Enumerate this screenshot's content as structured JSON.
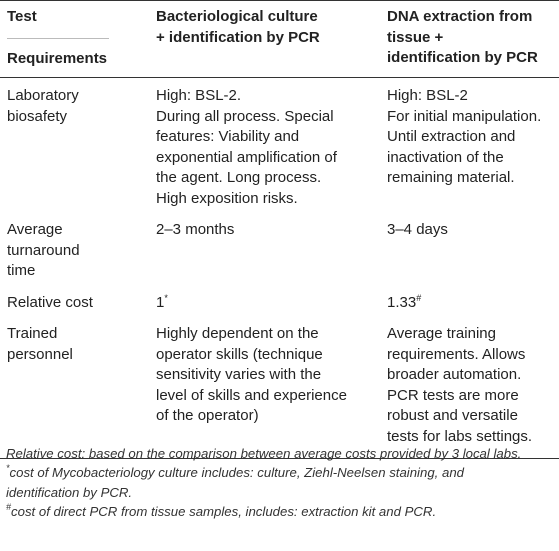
{
  "table": {
    "header": {
      "test_label": "Test",
      "requirements_label": "Requirements",
      "col2_line1": "Bacteriological culture",
      "col2_line2": "+ identification by PCR",
      "col3_line1": "DNA extraction from",
      "col3_line2": "tissue +",
      "col3_line3": "identification by PCR"
    },
    "rows": [
      {
        "label": [
          "Laboratory",
          "biosafety"
        ],
        "col2": [
          "High: BSL-2.",
          "During all process. Special",
          "features: Viability and",
          "exponential amplification of",
          "the agent. Long process.",
          "High exposition risks."
        ],
        "col3": [
          "High: BSL-2",
          "For initial manipulation.",
          "Until extraction and",
          "inactivation of the",
          "remaining material."
        ]
      },
      {
        "label": [
          "Average",
          "turnaround",
          "time"
        ],
        "col2": [
          "2–3 months"
        ],
        "col3": [
          "3–4 days"
        ]
      },
      {
        "label": [
          "Relative cost"
        ],
        "col2_value": "1",
        "col2_sup": "*",
        "col3_value": "1.33",
        "col3_sup": "#"
      },
      {
        "label": [
          "Trained",
          "personnel"
        ],
        "col2": [
          "Highly dependent on the",
          "operator skills (technique",
          "sensitivity varies with the",
          "level of skills and experience",
          "of the operator)"
        ],
        "col3": [
          "Average training",
          "requirements. Allows",
          "broader automation.",
          "PCR tests are more",
          "robust and versatile",
          "tests for labs settings."
        ]
      }
    ]
  },
  "notes": {
    "line1": "Relative cost: based on the comparison between average costs provided by 3 local labs.",
    "note2_marker": "*",
    "note2_line1": "cost of Mycobacteriology culture includes: culture, Ziehl-Neelsen staining, and",
    "note2_line2": "identification by PCR.",
    "note3_marker": "#",
    "note3_line1": "cost of direct PCR from tissue samples, includes: extraction kit and PCR."
  }
}
